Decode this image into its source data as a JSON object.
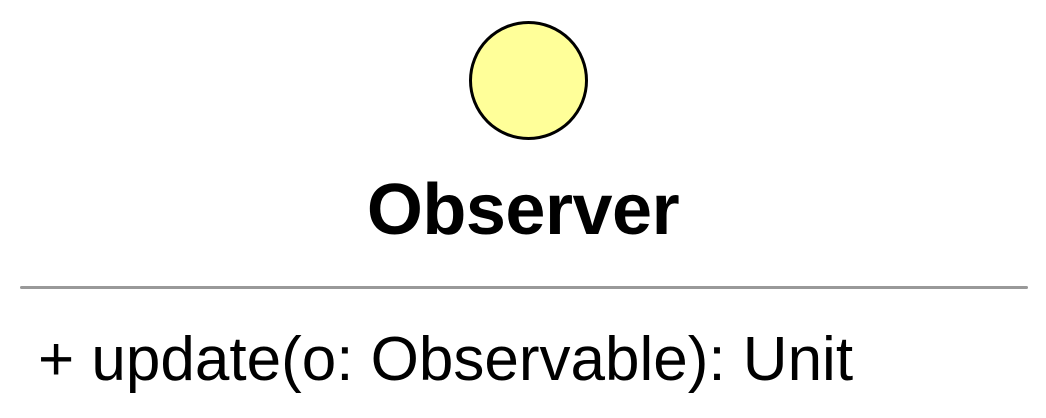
{
  "class_box": {
    "icon": "interface-circle-icon",
    "name": "Observer",
    "methods": [
      "+ update(o: Observable): Unit"
    ]
  },
  "colors": {
    "icon_fill": "#ffff99",
    "divider": "#999999"
  }
}
